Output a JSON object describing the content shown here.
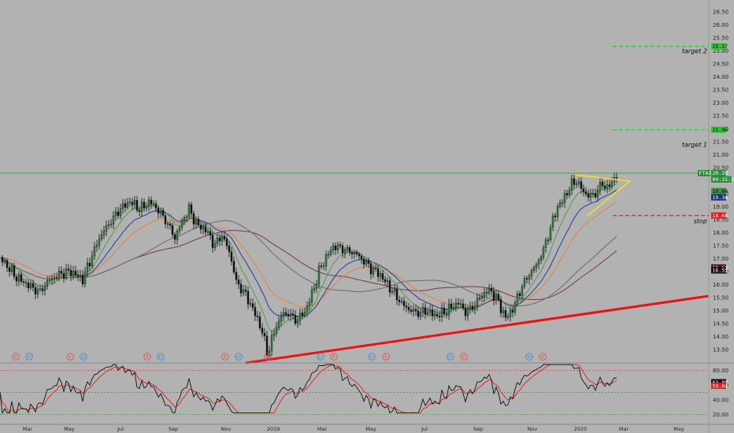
{
  "chart_data": [
    {
      "type": "candlestick",
      "symbol": "FTAI",
      "y_ticks": [
        "26.50",
        "26.00",
        "25.50",
        "25.00",
        "24.50",
        "24.00",
        "23.50",
        "23.00",
        "22.50",
        "22.00",
        "21.50",
        "21.00",
        "20.50",
        "20.00",
        "19.50",
        "19.00",
        "18.50",
        "18.00",
        "17.50",
        "17.00",
        "16.50",
        "16.00",
        "15.50",
        "15.00",
        "14.50",
        "14.00",
        "13.50"
      ],
      "ylim": [
        13.0,
        26.8
      ],
      "x_ticks": [
        "Mar",
        "May",
        "Jul",
        "Sep",
        "Nov",
        "2019",
        "Mar",
        "May",
        "Jul",
        "Sep",
        "Nov",
        "2020",
        "Mar",
        "May"
      ],
      "price_labels": [
        {
          "text": "25.17",
          "value": 25.17,
          "color": "#22cc22"
        },
        {
          "text": "21.96",
          "value": 21.96,
          "color": "#22cc22"
        },
        {
          "text": "FTAI",
          "value": 20.29,
          "color": "#2e8b3a"
        },
        {
          "text": "20.29",
          "value": 20.29,
          "color": "#2e8b3a"
        },
        {
          "text": "04:15:27",
          "value": 20.05,
          "color": "#2e8b3a"
        },
        {
          "text": "19.60",
          "value": 19.6,
          "color": "#3a9a3a"
        },
        {
          "text": "19.36",
          "value": 19.36,
          "color": "#1e2a7a"
        },
        {
          "text": "18.66",
          "value": 18.66,
          "color": "#e02020"
        },
        {
          "text": "16.66",
          "value": 16.66,
          "color": "#5a0e0e"
        },
        {
          "text": "16.55",
          "value": 16.55,
          "color": "#111111"
        }
      ],
      "annotations": [
        {
          "text": "target 2",
          "value": 25.0
        },
        {
          "text": "target 1",
          "value": 21.4
        },
        {
          "text": "stop",
          "value": 18.45
        }
      ],
      "events": [
        "E",
        "D",
        "E",
        "D",
        "E",
        "D",
        "E",
        "D",
        "E",
        "D",
        "E",
        "D",
        "E",
        "D",
        "E",
        "D",
        "E"
      ]
    },
    {
      "type": "line",
      "indicator": "RSI",
      "y_ticks": [
        "80.00",
        "60.00",
        "40.00",
        "20.00"
      ],
      "ylim": [
        15,
        92
      ],
      "price_labels": [
        {
          "text": "63.89",
          "value": 63.89,
          "color": "#111111"
        },
        {
          "text": "59.04",
          "value": 59.04,
          "color": "#e02020"
        }
      ]
    }
  ]
}
